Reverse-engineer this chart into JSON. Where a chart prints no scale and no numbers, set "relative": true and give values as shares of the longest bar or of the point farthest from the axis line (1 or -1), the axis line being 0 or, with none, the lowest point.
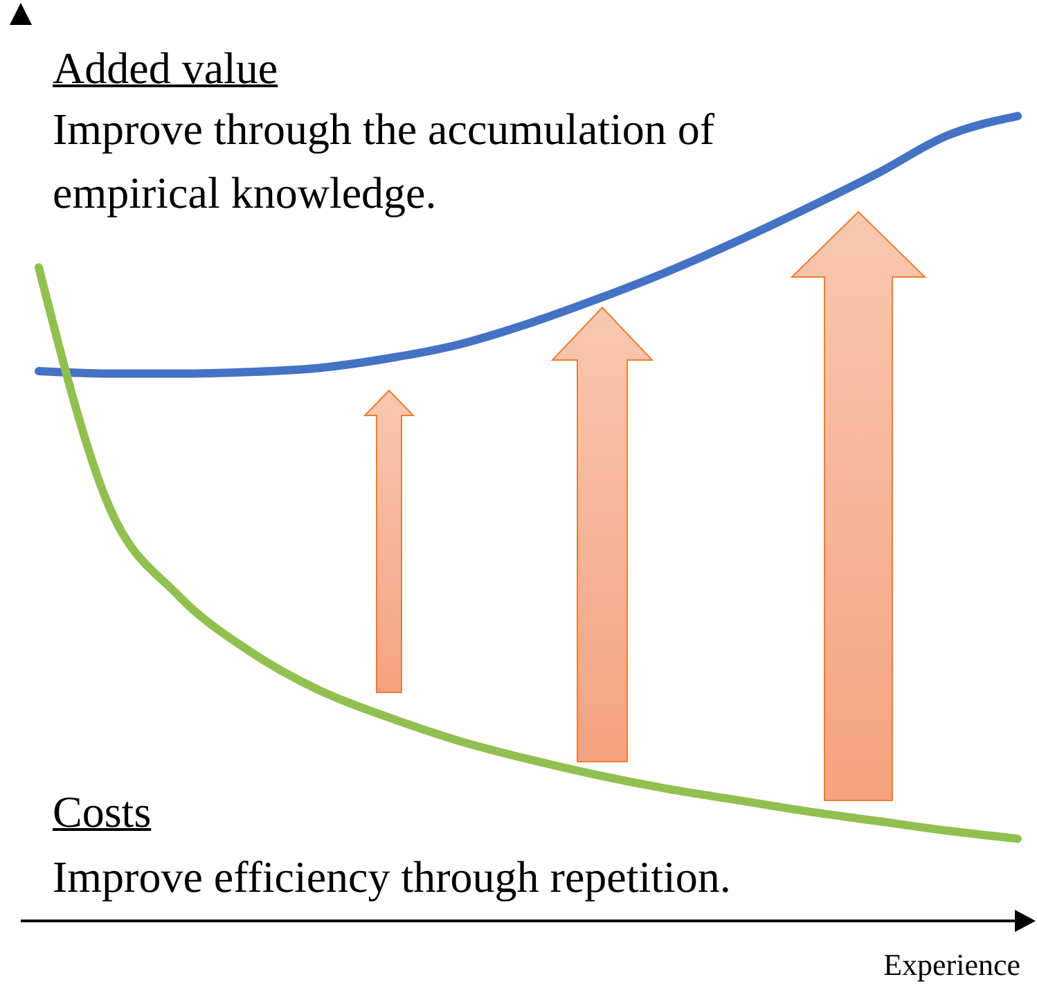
{
  "chart_data": {
    "type": "line",
    "relative": true,
    "xlabel": "Experience",
    "annotations": [
      "Added value",
      "Improve through the accumulation of empirical knowledge.",
      "Costs",
      "Improve efficiency through repetition."
    ],
    "categories": [
      null,
      null,
      null,
      null,
      null,
      null,
      null,
      null,
      null,
      null,
      null,
      null,
      null,
      null,
      null
    ],
    "series": [
      {
        "color": "#4472c4",
        "values": [
          0.683,
          0.68,
          0.68,
          0.682,
          0.687,
          0.699,
          0.716,
          0.742,
          0.773,
          0.807,
          0.845,
          0.886,
          0.929,
          0.976,
          1
        ]
      },
      {
        "color": "#92c050",
        "values": [
          0.812,
          0.516,
          0.404,
          0.336,
          0.287,
          0.253,
          0.224,
          0.201,
          0.181,
          0.164,
          0.15,
          0.136,
          0.124,
          0.112,
          0.102
        ]
      }
    ],
    "grid": false,
    "legend": false,
    "marker": "none",
    "line_style": "solid"
  }
}
